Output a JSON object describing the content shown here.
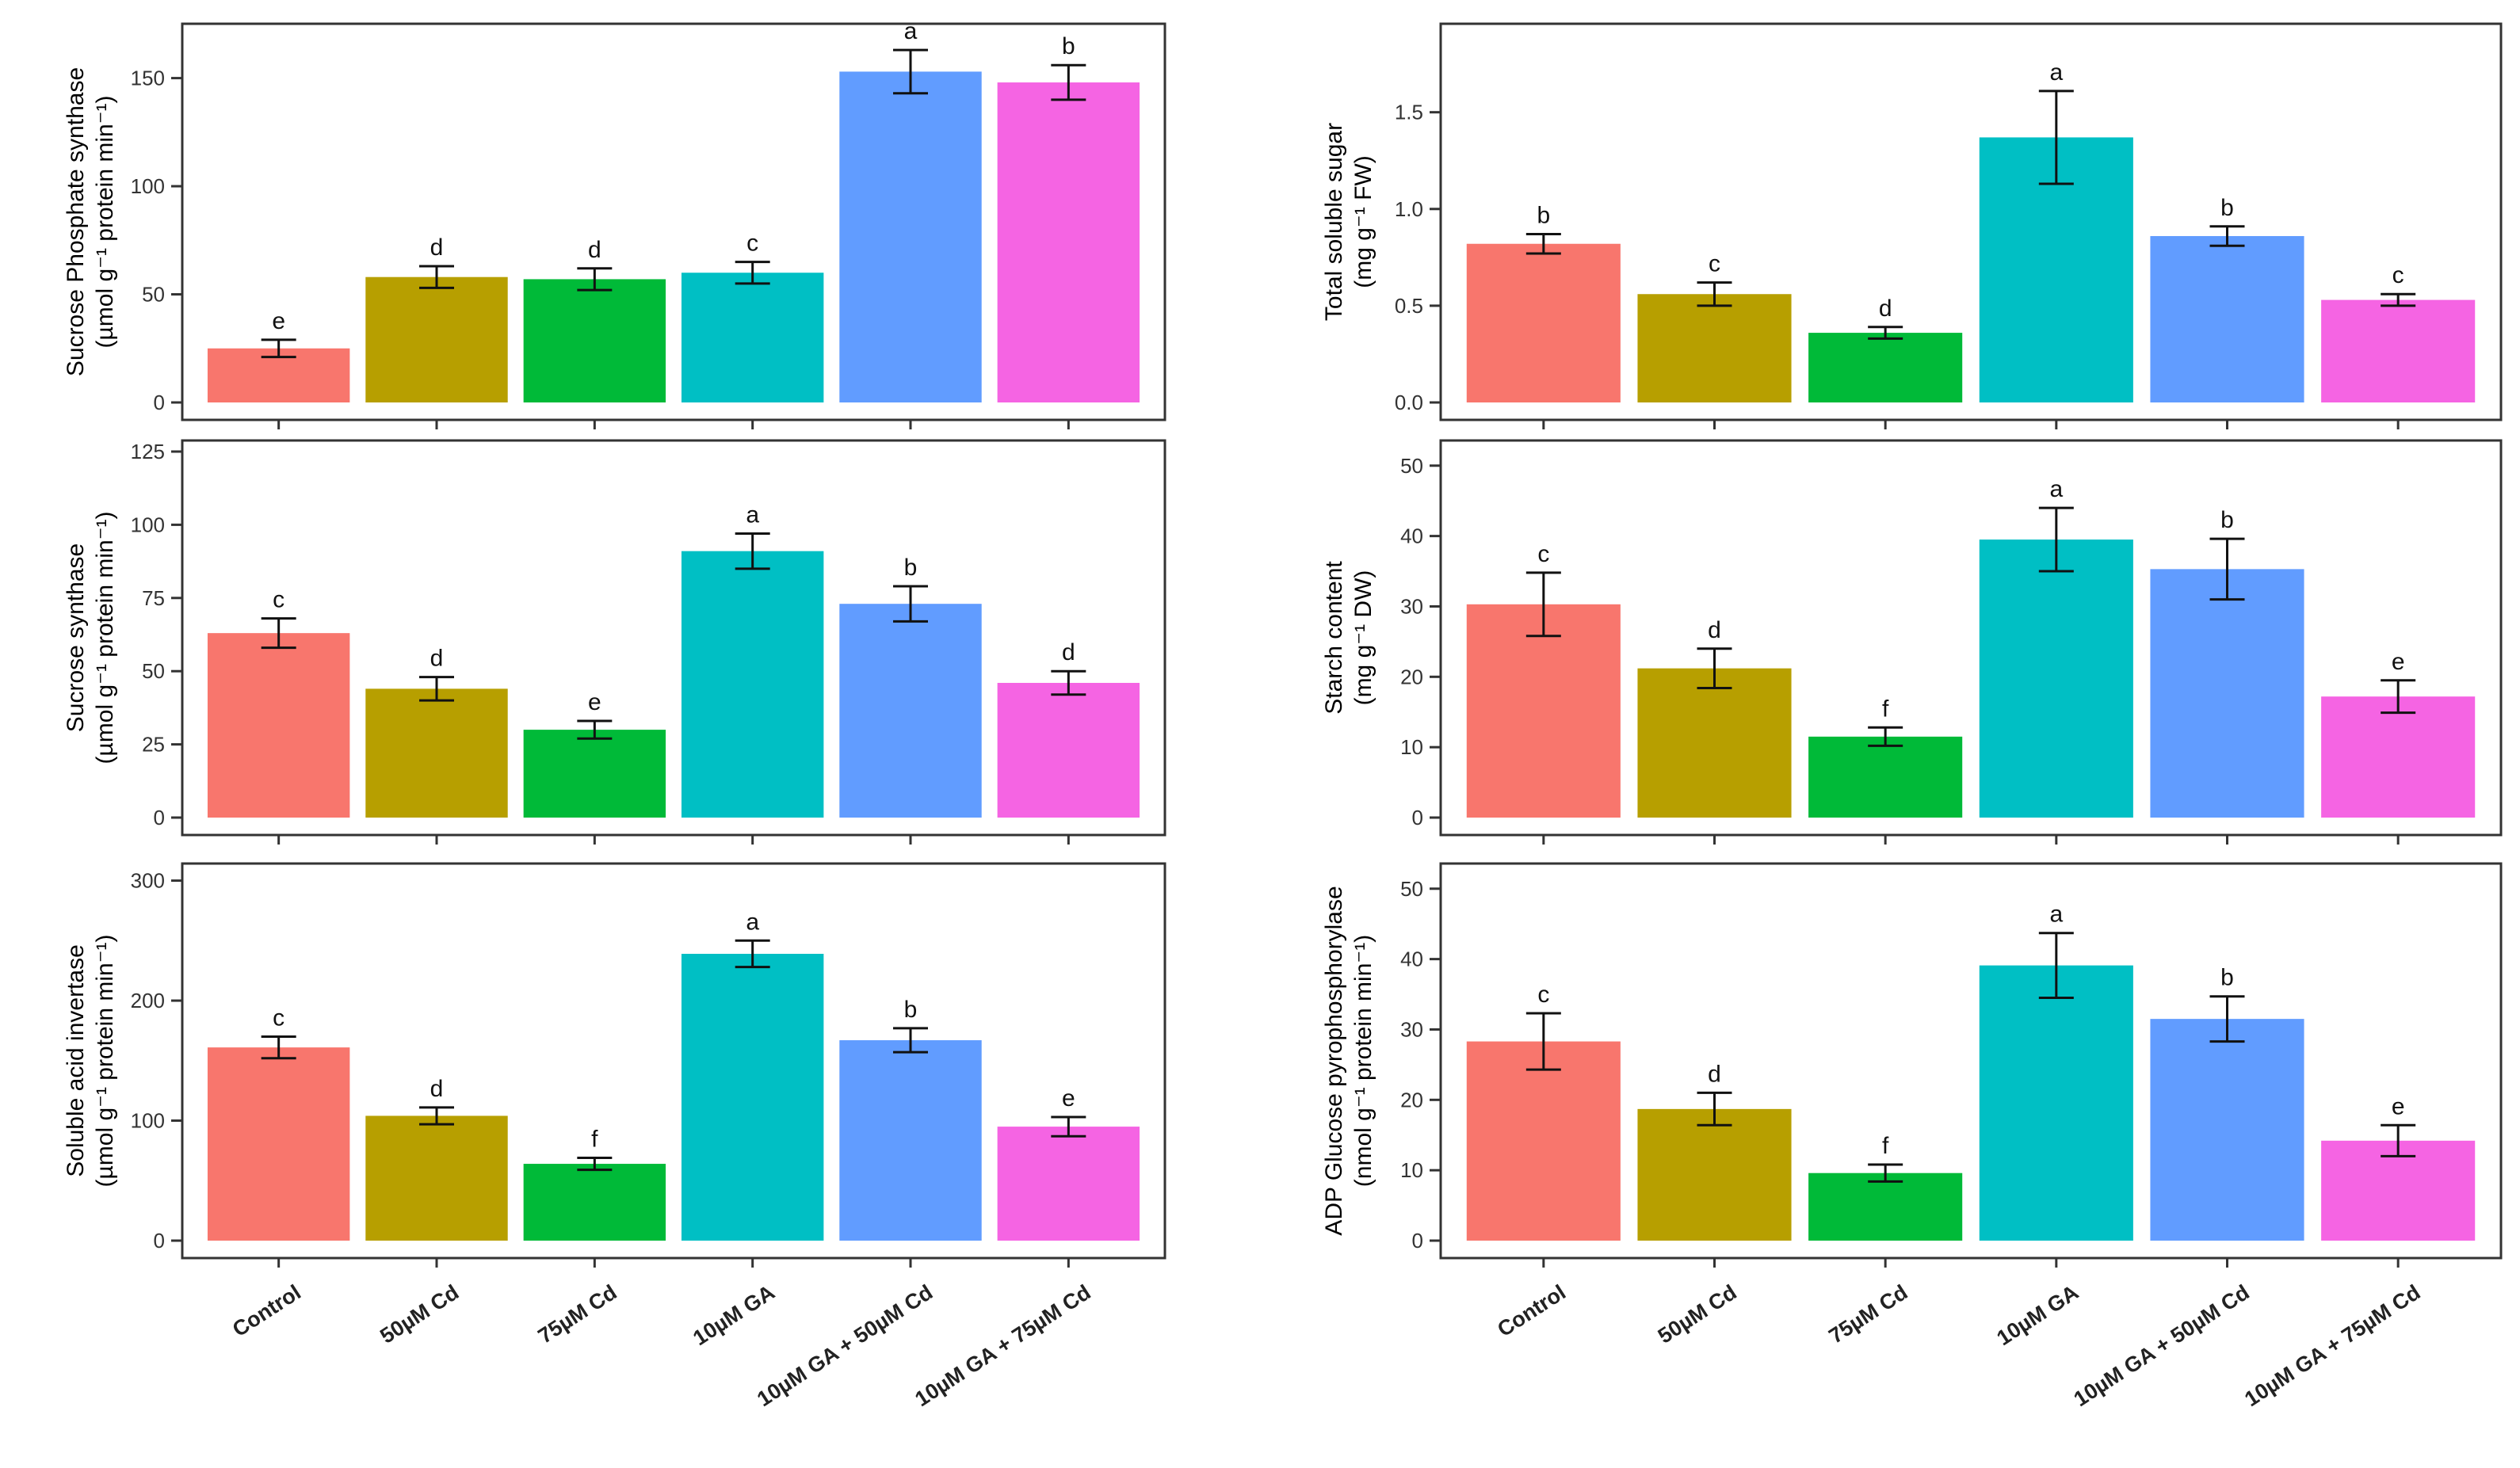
{
  "colors": [
    "#F8766D",
    "#B79F00",
    "#00BA38",
    "#00BFC4",
    "#619CFF",
    "#F564E3"
  ],
  "categories": [
    "Control",
    "50µM Cd",
    "75µM Cd",
    "10µM GA",
    "10µM GA + 50µM Cd",
    "10µM GA + 75µM Cd"
  ],
  "chart_data": [
    {
      "type": "bar",
      "ylabel_line1": "Sucrose Phosphate synthase",
      "ylabel_line2": "(µmol g⁻¹ protein min⁻¹)",
      "ylim": [
        0,
        170
      ],
      "yticks": [
        0,
        50,
        100,
        150
      ],
      "categories": [
        "Control",
        "50µM Cd",
        "75µM Cd",
        "10µM GA",
        "10µM GA + 50µM Cd",
        "10µM GA + 75µM Cd"
      ],
      "values": [
        25,
        58,
        57,
        60,
        153,
        148
      ],
      "errors": [
        4,
        5,
        5,
        5,
        10,
        8
      ],
      "letters": [
        "e",
        "d",
        "d",
        "c",
        "a",
        "b"
      ]
    },
    {
      "type": "bar",
      "ylabel_line1": "Total soluble sugar",
      "ylabel_line2": "(mg g⁻¹ FW)",
      "ylim": [
        0,
        1.9
      ],
      "yticks": [
        0.0,
        0.5,
        1.0,
        1.5
      ],
      "categories": [
        "Control",
        "50µM Cd",
        "75µM Cd",
        "10µM GA",
        "10µM GA + 50µM Cd",
        "10µM GA + 75µM Cd"
      ],
      "values": [
        0.82,
        0.56,
        0.36,
        1.37,
        0.86,
        0.53
      ],
      "errors": [
        0.05,
        0.06,
        0.03,
        0.24,
        0.05,
        0.03
      ],
      "letters": [
        "b",
        "c",
        "d",
        "a",
        "b",
        "c"
      ]
    },
    {
      "type": "bar",
      "ylabel_line1": "Sucrose synthase",
      "ylabel_line2": "(µmol g⁻¹ protein min⁻¹)",
      "ylim": [
        0,
        125
      ],
      "yticks": [
        0,
        25,
        50,
        75,
        100,
        125
      ],
      "categories": [
        "Control",
        "50µM Cd",
        "75µM Cd",
        "10µM GA",
        "10µM GA + 50µM Cd",
        "10µM GA + 75µM Cd"
      ],
      "values": [
        63,
        44,
        30,
        91,
        73,
        46
      ],
      "errors": [
        5,
        4,
        3,
        6,
        6,
        4
      ],
      "letters": [
        "c",
        "d",
        "e",
        "a",
        "b",
        "d"
      ]
    },
    {
      "type": "bar",
      "ylabel_line1": "Starch content",
      "ylabel_line2": "(mg g⁻¹ DW)",
      "ylim": [
        0,
        52
      ],
      "yticks": [
        0,
        10,
        20,
        30,
        40,
        50
      ],
      "categories": [
        "Control",
        "50µM Cd",
        "75µM Cd",
        "10µM GA",
        "10µM GA + 50µM Cd",
        "10µM GA + 75µM Cd"
      ],
      "values": [
        30.3,
        21.2,
        11.5,
        39.5,
        35.3,
        17.2
      ],
      "errors": [
        4.5,
        2.8,
        1.3,
        4.5,
        4.3,
        2.3
      ],
      "letters": [
        "c",
        "d",
        "f",
        "a",
        "b",
        "e"
      ]
    },
    {
      "type": "bar",
      "ylabel_line1": "Soluble acid invertase",
      "ylabel_line2": "(µmol g⁻¹ protein min⁻¹)",
      "ylim": [
        0,
        305
      ],
      "yticks": [
        0,
        100,
        200,
        300
      ],
      "categories": [
        "Control",
        "50µM Cd",
        "75µM Cd",
        "10µM GA",
        "10µM GA + 50µM Cd",
        "10µM GA + 75µM Cd"
      ],
      "values": [
        161,
        104,
        64,
        239,
        167,
        95
      ],
      "errors": [
        9,
        7,
        5,
        11,
        10,
        8
      ],
      "letters": [
        "c",
        "d",
        "f",
        "a",
        "b",
        "e"
      ]
    },
    {
      "type": "bar",
      "ylabel_line1": "ADP Glucose pyrophosphorylase",
      "ylabel_line2": "(nmol g⁻¹ protein min⁻¹)",
      "ylim": [
        0,
        52
      ],
      "yticks": [
        0,
        10,
        20,
        30,
        40,
        50
      ],
      "categories": [
        "Control",
        "50µM Cd",
        "75µM Cd",
        "10µM GA",
        "10µM GA + 50µM Cd",
        "10µM GA + 75µM Cd"
      ],
      "values": [
        28.3,
        18.7,
        9.6,
        39.1,
        31.5,
        14.2
      ],
      "errors": [
        4,
        2.3,
        1.2,
        4.6,
        3.2,
        2.2
      ],
      "letters": [
        "c",
        "d",
        "f",
        "a",
        "b",
        "e"
      ]
    }
  ]
}
